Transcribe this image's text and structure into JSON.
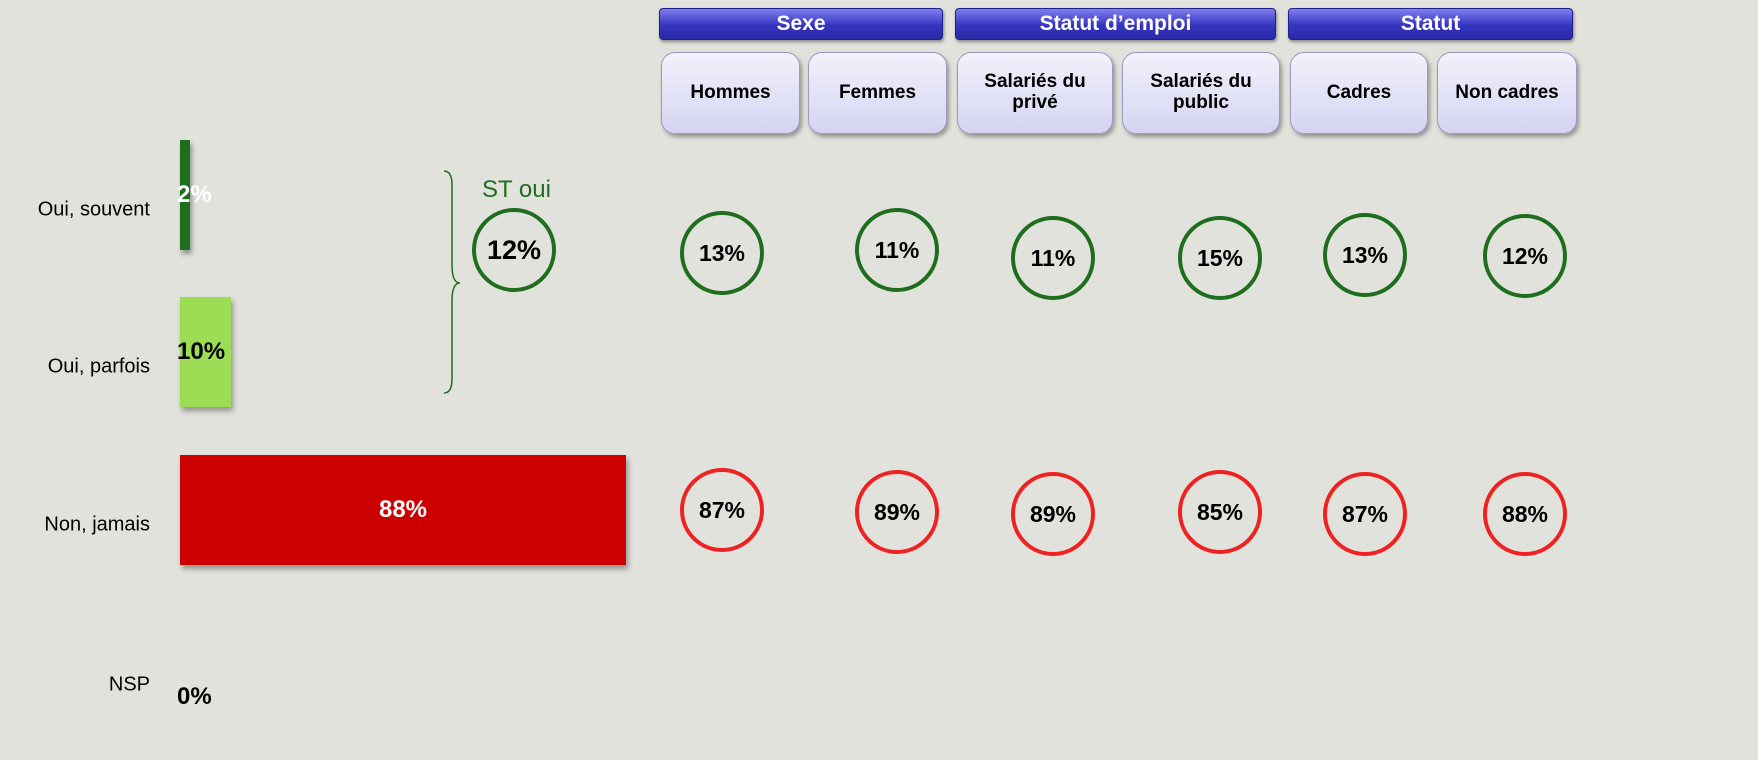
{
  "chart_data": {
    "type": "bar",
    "orientation": "horizontal",
    "categories": [
      "Oui, souvent",
      "Oui, parfois",
      "Non, jamais",
      "NSP"
    ],
    "values": [
      2,
      10,
      88,
      0
    ],
    "value_labels": [
      "2%",
      "10%",
      "88%",
      "0%"
    ],
    "colors": [
      "#1e6e1e",
      "#9ddc55",
      "#cc0000",
      "#d8d8d2"
    ],
    "label_colors": [
      "#ffffff",
      "#000000",
      "#ffffff",
      "#000000"
    ]
  },
  "annotation": {
    "label": "ST oui",
    "value": 12,
    "value_label": "12%",
    "color": "#1e6e1e"
  },
  "crosstab": {
    "groups": [
      {
        "name": "Sexe",
        "columns": [
          "Hommes",
          "Femmes"
        ]
      },
      {
        "name": "Statut d’emploi",
        "columns": [
          "Salariés du privé",
          "Salariés du public"
        ]
      },
      {
        "name": "Statut",
        "columns": [
          "Cadres",
          "Non cadres"
        ]
      }
    ],
    "rows": [
      {
        "color": "#1e6e1e",
        "values": [
          13,
          11,
          11,
          15,
          13,
          12
        ],
        "value_labels": [
          "13%",
          "11%",
          "11%",
          "15%",
          "13%",
          "12%"
        ]
      },
      {
        "color": "#ee2222",
        "values": [
          87,
          89,
          89,
          85,
          87,
          88
        ],
        "value_labels": [
          "87%",
          "89%",
          "89%",
          "85%",
          "87%",
          "88%"
        ]
      }
    ]
  }
}
